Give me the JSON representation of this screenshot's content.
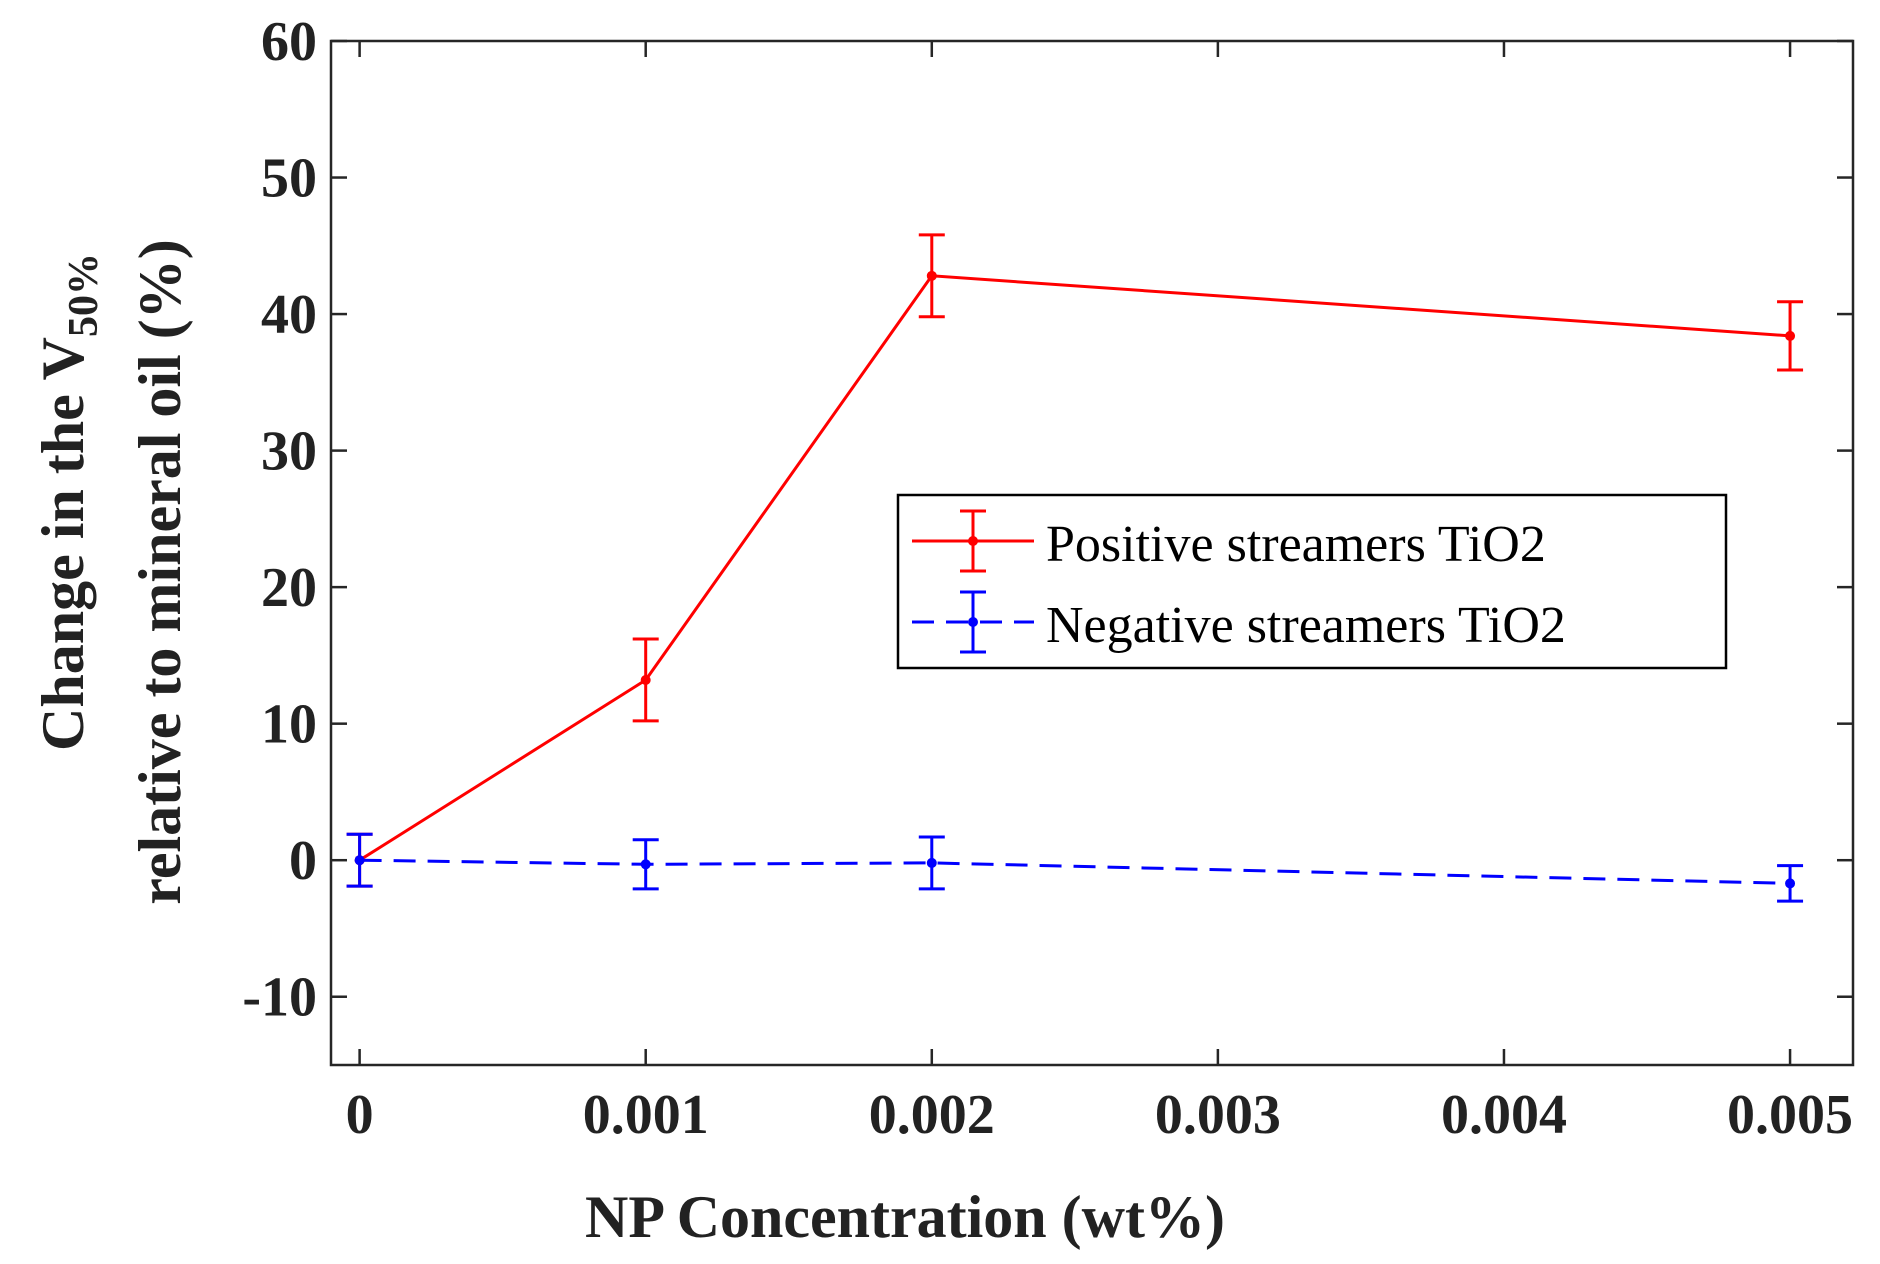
{
  "chart_data": {
    "type": "line",
    "x": [
      0,
      0.001,
      0.002,
      0.005
    ],
    "series": [
      {
        "name": "Positive streamers TiO2",
        "values": [
          0,
          13.2,
          42.8,
          38.4
        ],
        "error": [
          1.9,
          3.0,
          3.0,
          2.5
        ],
        "color": "#ff0000",
        "line_style": "solid"
      },
      {
        "name": "Negative streamers TiO2",
        "values": [
          0,
          -0.3,
          -0.2,
          -1.7
        ],
        "error": [
          1.9,
          1.8,
          1.9,
          1.3
        ],
        "color": "#0000ff",
        "line_style": "dashed"
      }
    ],
    "xlabel": "NP Concentration (wt%)",
    "ylabel_line1_prefix": "Change in the V",
    "ylabel_line1_subscript": "50%",
    "ylabel_line2": "relative to mineral oil (%)",
    "xlim": [
      -0.0001,
      0.00522
    ],
    "ylim": [
      -15,
      60
    ],
    "xticks": [
      0,
      0.001,
      0.002,
      0.003,
      0.004,
      0.005
    ],
    "xtick_labels": [
      "0",
      "0.001",
      "0.002",
      "0.003",
      "0.004",
      "0.005"
    ],
    "yticks": [
      -10,
      0,
      10,
      20,
      30,
      40,
      50,
      60
    ],
    "ytick_labels": [
      "-10",
      "0",
      "10",
      "20",
      "30",
      "40",
      "50",
      "60"
    ],
    "legend_position": "center-right",
    "grid": false
  }
}
